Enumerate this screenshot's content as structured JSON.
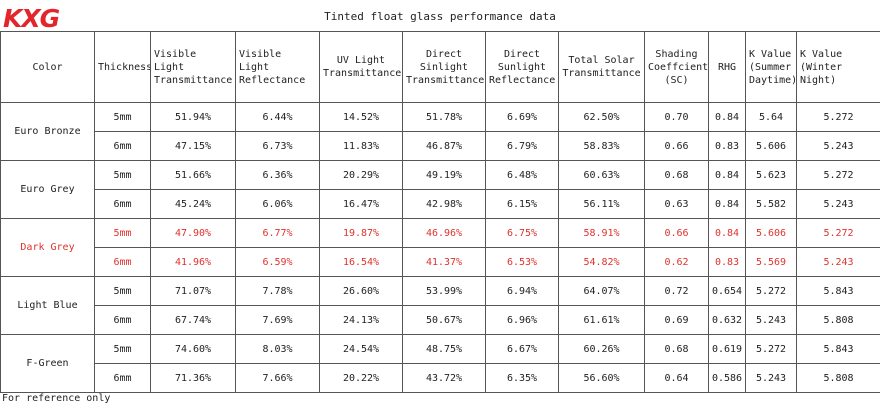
{
  "logo": {
    "text": "KXG",
    "color": "#e3262b"
  },
  "title": "Tinted float glass performance data",
  "highlight_color": "#e0322d",
  "columns": [
    "Color",
    "Thickness",
    "Visible Light Transmittance",
    "Visible Light Reflectance",
    "UV Light Transmittance",
    "Direct Sinlight Transmittance",
    "Direct Sunlight Reflectance",
    "Total Solar Transmittance",
    "Shading Coeffcient (SC)",
    "RHG",
    "K Value (Summer Daytime)",
    "K Value (Winter Night)"
  ],
  "groups": [
    {
      "color": "Euro Bronze",
      "highlight": false,
      "rows": [
        [
          "5mm",
          "51.94%",
          "6.44%",
          "14.52%",
          "51.78%",
          "6.69%",
          "62.50%",
          "0.70",
          "0.84",
          "5.64",
          "5.272"
        ],
        [
          "6mm",
          "47.15%",
          "6.73%",
          "11.83%",
          "46.87%",
          "6.79%",
          "58.83%",
          "0.66",
          "0.83",
          "5.606",
          "5.243"
        ]
      ]
    },
    {
      "color": "Euro Grey",
      "highlight": false,
      "rows": [
        [
          "5mm",
          "51.66%",
          "6.36%",
          "20.29%",
          "49.19%",
          "6.48%",
          "60.63%",
          "0.68",
          "0.84",
          "5.623",
          "5.272"
        ],
        [
          "6mm",
          "45.24%",
          "6.06%",
          "16.47%",
          "42.98%",
          "6.15%",
          "56.11%",
          "0.63",
          "0.84",
          "5.582",
          "5.243"
        ]
      ]
    },
    {
      "color": "Dark Grey",
      "highlight": true,
      "rows": [
        [
          "5mm",
          "47.90%",
          "6.77%",
          "19.87%",
          "46.96%",
          "6.75%",
          "58.91%",
          "0.66",
          "0.84",
          "5.606",
          "5.272"
        ],
        [
          "6mm",
          "41.96%",
          "6.59%",
          "16.54%",
          "41.37%",
          "6.53%",
          "54.82%",
          "0.62",
          "0.83",
          "5.569",
          "5.243"
        ]
      ]
    },
    {
      "color": "Light Blue",
      "highlight": false,
      "rows": [
        [
          "5mm",
          "71.07%",
          "7.78%",
          "26.60%",
          "53.99%",
          "6.94%",
          "64.07%",
          "0.72",
          "0.654",
          "5.272",
          "5.843"
        ],
        [
          "6mm",
          "67.74%",
          "7.69%",
          "24.13%",
          "50.67%",
          "6.96%",
          "61.61%",
          "0.69",
          "0.632",
          "5.243",
          "5.808"
        ]
      ]
    },
    {
      "color": "F-Green",
      "highlight": false,
      "rows": [
        [
          "5mm",
          "74.60%",
          "8.03%",
          "24.54%",
          "48.75%",
          "6.67%",
          "60.26%",
          "0.68",
          "0.619",
          "5.272",
          "5.843"
        ],
        [
          "6mm",
          "71.36%",
          "7.66%",
          "20.22%",
          "43.72%",
          "6.35%",
          "56.60%",
          "0.64",
          "0.586",
          "5.243",
          "5.808"
        ]
      ]
    }
  ],
  "footnote": "For reference only"
}
